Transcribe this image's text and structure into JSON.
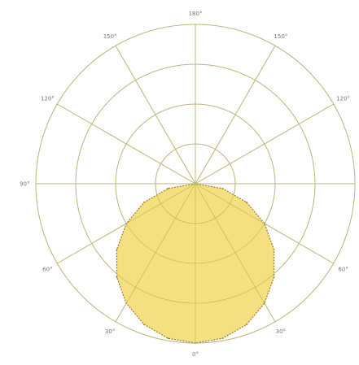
{
  "chart_data": {
    "type": "polar-area",
    "title": "",
    "angular_tick_labels": [
      "180°",
      "150°",
      "120°",
      "90°",
      "60°",
      "30°",
      "0°",
      "30°",
      "60°",
      "90°",
      "120°",
      "150°"
    ],
    "angular_tick_degrees": [
      180,
      150,
      120,
      90,
      60,
      30,
      0,
      -30,
      -60,
      -90,
      -120,
      -150
    ],
    "radial_tick_labels": [
      "",
      "",
      "",
      ""
    ],
    "radial_ticks": [
      25,
      50,
      75,
      100
    ],
    "rmax": 100,
    "grid": true,
    "series": [
      {
        "type": "area",
        "fill": "#f2da6a",
        "stroke": "#9a7c28",
        "points": [
          {
            "angle": 0,
            "r": 100
          },
          {
            "angle": 10,
            "r": 98.5
          },
          {
            "angle": 20,
            "r": 94
          },
          {
            "angle": 30,
            "r": 86.6
          },
          {
            "angle": 40,
            "r": 76.6
          },
          {
            "angle": 50,
            "r": 64.3
          },
          {
            "angle": 60,
            "r": 50
          },
          {
            "angle": 70,
            "r": 34.2
          },
          {
            "angle": 80,
            "r": 17.4
          },
          {
            "angle": 90,
            "r": 0
          },
          {
            "angle": -10,
            "r": 98.5
          },
          {
            "angle": -20,
            "r": 94
          },
          {
            "angle": -30,
            "r": 86.6
          },
          {
            "angle": -40,
            "r": 76.6
          },
          {
            "angle": -50,
            "r": 64.3
          },
          {
            "angle": -60,
            "r": 50
          },
          {
            "angle": -70,
            "r": 34.2
          },
          {
            "angle": -80,
            "r": 17.4
          },
          {
            "angle": -90,
            "r": 0
          }
        ]
      }
    ]
  }
}
